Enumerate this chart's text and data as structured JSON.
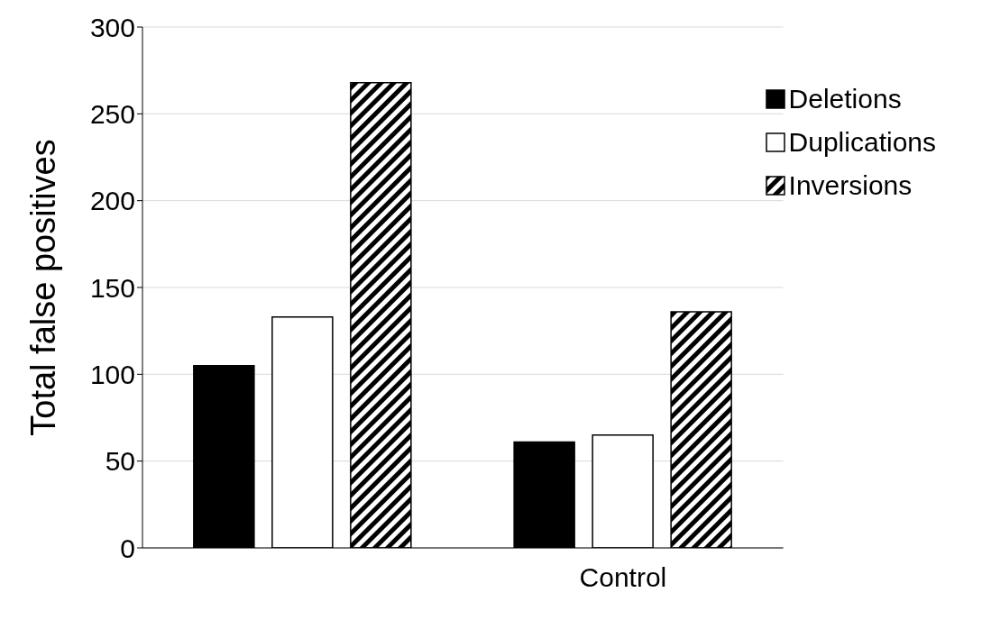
{
  "chart_data": {
    "type": "bar",
    "ylabel": "Total false positives",
    "categories": [
      null,
      "Control"
    ],
    "series": [
      {
        "name": "Deletions",
        "color": "#000000",
        "values": [
          105,
          61
        ]
      },
      {
        "name": "Duplications",
        "color": "#ffffff",
        "values": [
          133,
          65
        ]
      },
      {
        "name": "Inversions",
        "color": "#000000",
        "values": [
          268,
          136
        ]
      }
    ],
    "ylim": [
      0,
      300
    ],
    "yticks": [
      0,
      50,
      100,
      150,
      200,
      250,
      300
    ],
    "grid": "y",
    "legend": "top right"
  }
}
